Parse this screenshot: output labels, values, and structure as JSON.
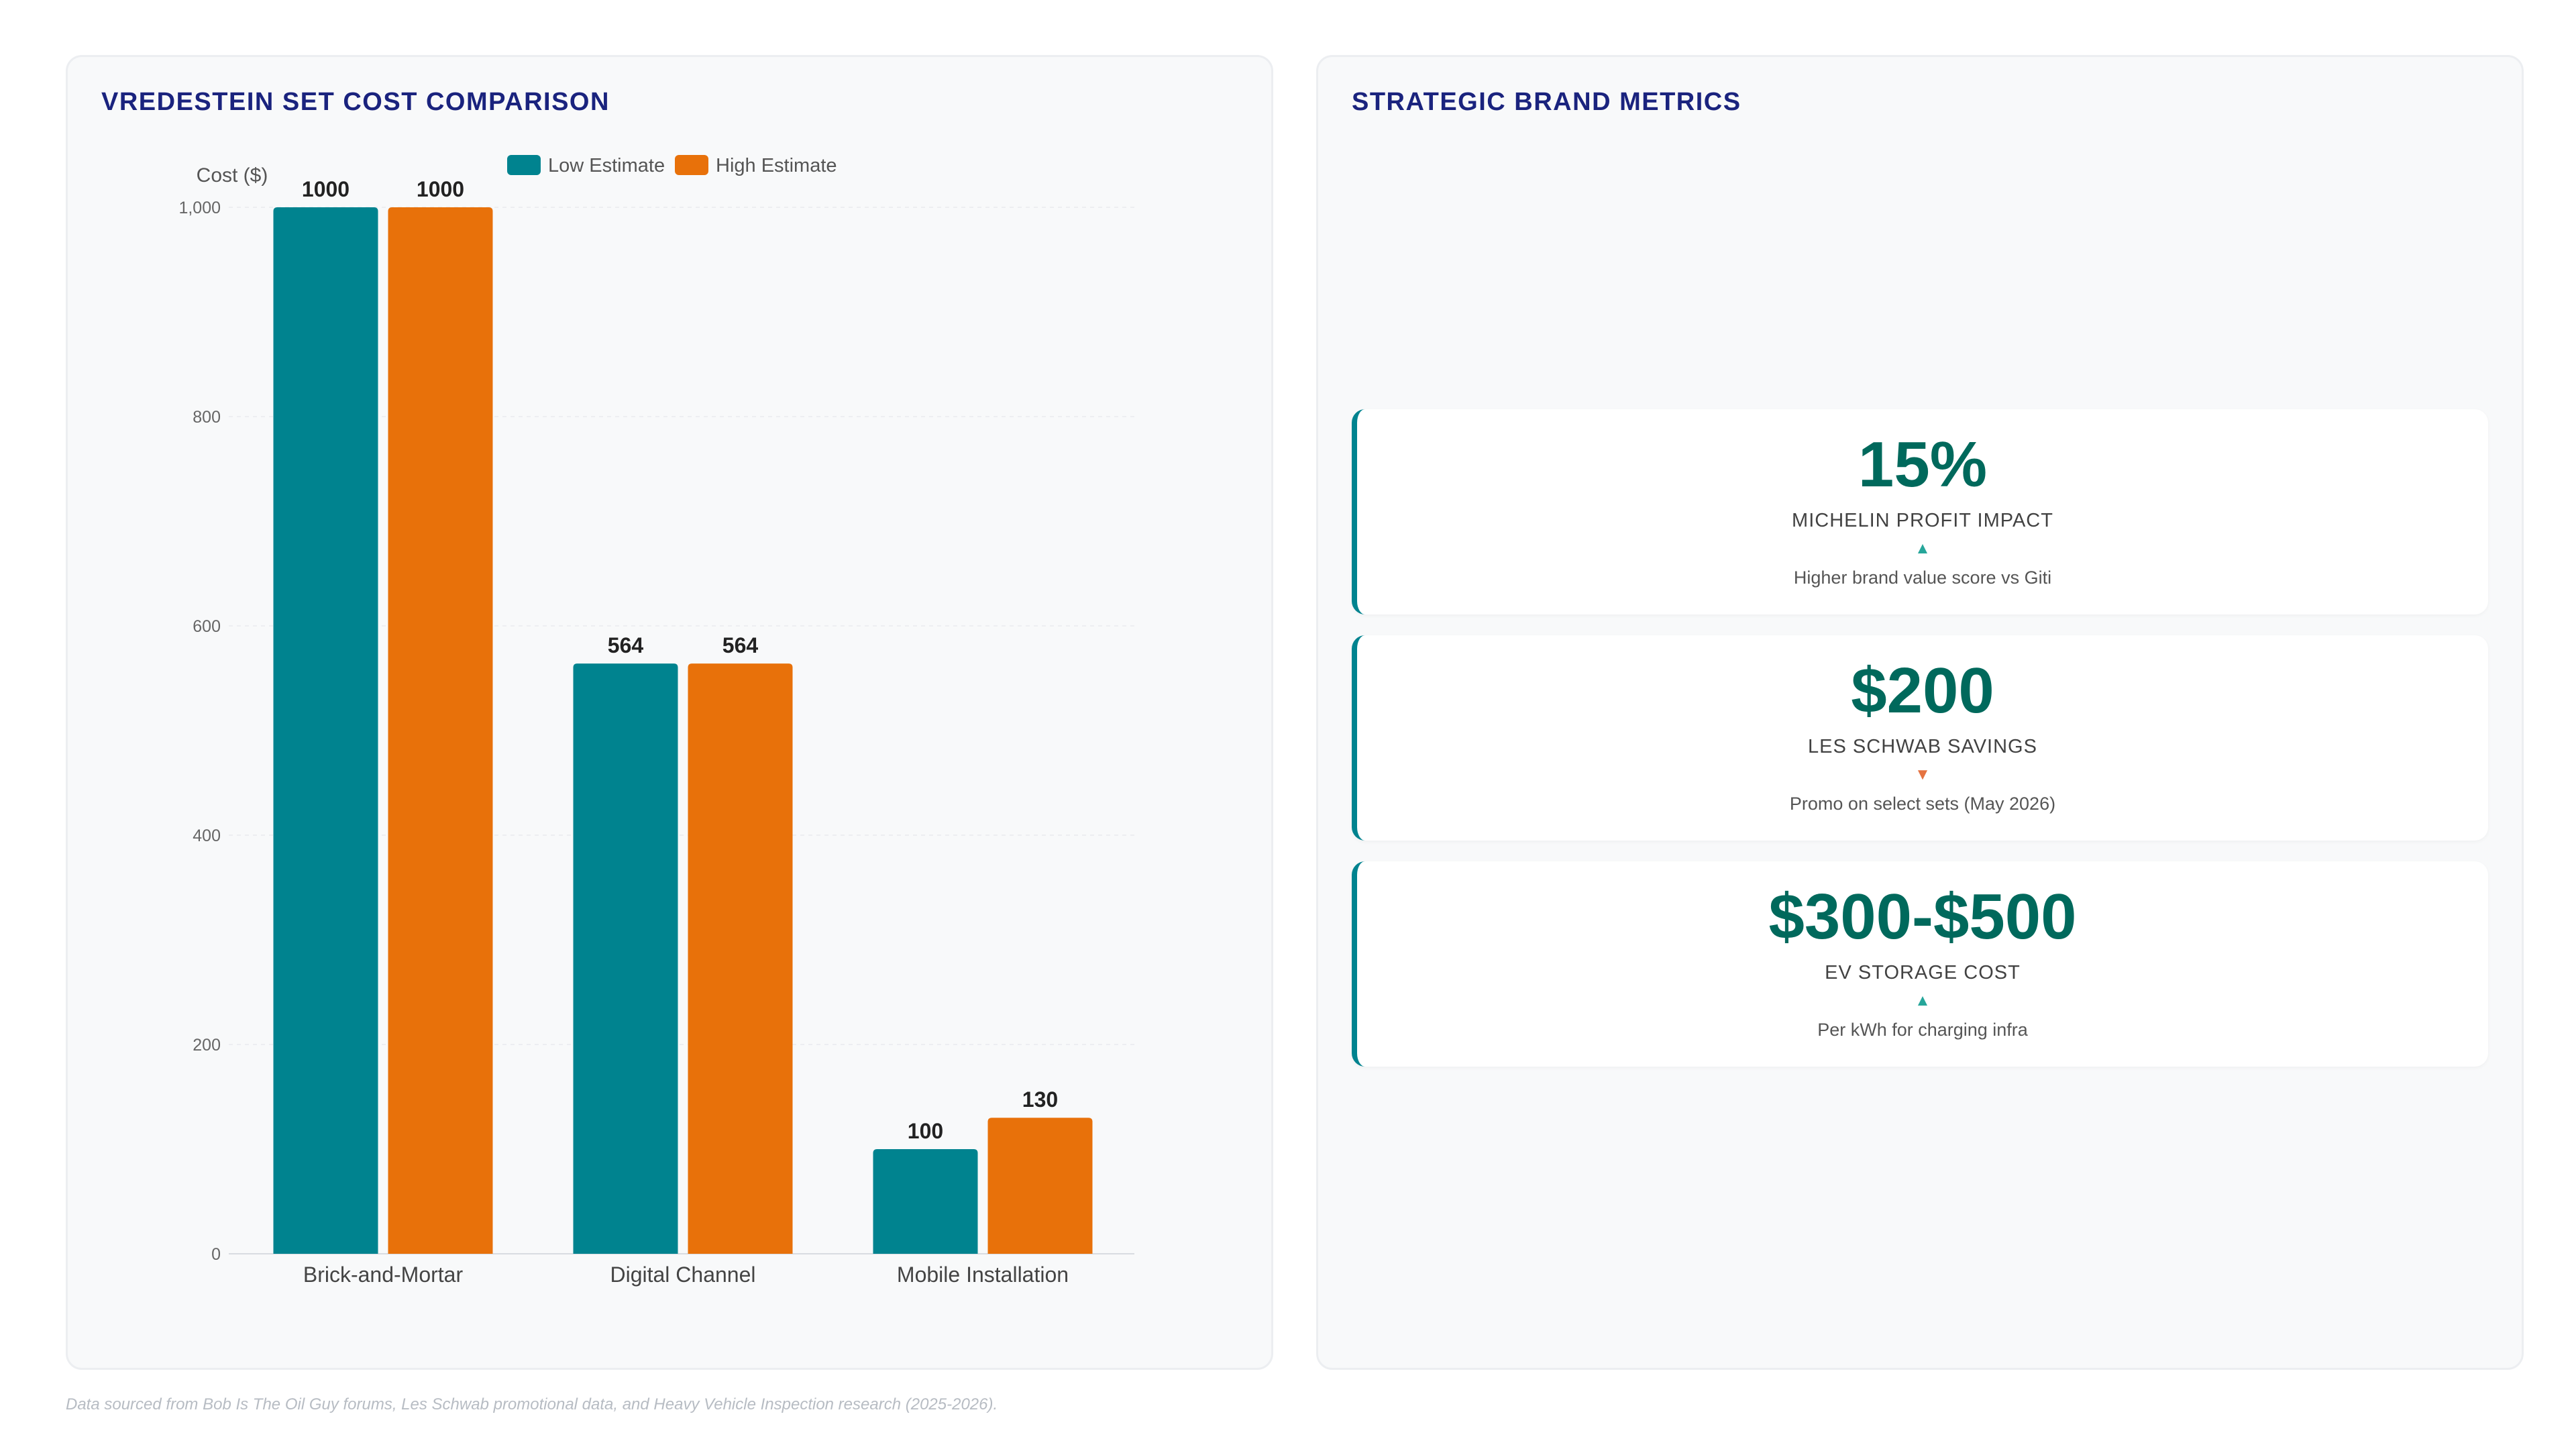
{
  "chart_title": "VREDESTEIN SET COST COMPARISON",
  "chart_data": {
    "type": "bar",
    "title": "VREDESTEIN SET COST COMPARISON",
    "ylabel": "Cost ($)",
    "xlabel": "",
    "categories": [
      "Brick-and-Mortar",
      "Digital Channel",
      "Mobile Installation"
    ],
    "series": [
      {
        "name": "Low Estimate",
        "color": "#00838f",
        "values": [
          1000,
          564,
          100
        ]
      },
      {
        "name": "High Estimate",
        "color": "#e8710a",
        "values": [
          1000,
          564,
          130
        ]
      }
    ],
    "ylim": [
      0,
      1000
    ],
    "yticks": [
      0,
      200,
      400,
      600,
      800,
      1000
    ],
    "ytick_labels": [
      "0",
      "200",
      "400",
      "600",
      "800",
      "1,000"
    ],
    "grid": true,
    "legend_position": "top"
  },
  "metrics": {
    "title": "STRATEGIC BRAND METRICS",
    "cards": [
      {
        "value": "15%",
        "label": "MICHELIN PROFIT IMPACT",
        "trend": "up",
        "arrow": "▲",
        "sub": "Higher brand value score vs Giti"
      },
      {
        "value": "$200",
        "label": "LES SCHWAB SAVINGS",
        "trend": "down",
        "arrow": "▼",
        "sub": "Promo on select sets (May 2026)"
      },
      {
        "value": "$300-$500",
        "label": "EV STORAGE COST",
        "trend": "up",
        "arrow": "▲",
        "sub": "Per kWh for charging infra"
      }
    ]
  },
  "footnote": "Data sourced from Bob Is The Oil Guy forums, Les Schwab promotional data, and Heavy Vehicle Inspection research (2025-2026).",
  "colors": {
    "accent": "#00838f",
    "secondary": "#e8710a",
    "title": "#1a237e",
    "metric_value": "#00695c"
  }
}
